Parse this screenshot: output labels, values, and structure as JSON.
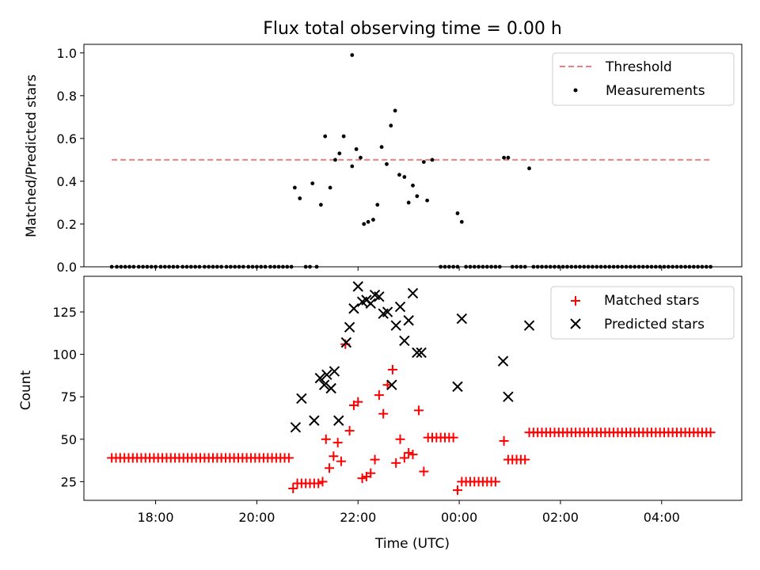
{
  "chart_data": [
    {
      "type": "scatter",
      "title": "Flux total observing time = 0.00 h",
      "ylabel": "Matched/Predicted stars",
      "ylim": [
        0,
        1.04
      ],
      "yticks": [
        "0.0",
        "0.2",
        "0.4",
        "0.6",
        "0.8",
        "1.0"
      ],
      "threshold": {
        "name": "Threshold",
        "value": 0.5,
        "x_start": "17:08",
        "x_end": "04:58",
        "color": "#f08080"
      },
      "legend_position": "upper right",
      "series": [
        {
          "name": "Measurements",
          "color": "#000000",
          "points": [
            [
              "20:45",
              0.37
            ],
            [
              "20:51",
              0.32
            ],
            [
              "21:06",
              0.39
            ],
            [
              "21:16",
              0.29
            ],
            [
              "21:21",
              0.61
            ],
            [
              "21:27",
              0.37
            ],
            [
              "21:33",
              0.5
            ],
            [
              "21:38",
              0.53
            ],
            [
              "21:43",
              0.61
            ],
            [
              "21:53",
              0.47
            ],
            [
              "21:58",
              0.55
            ],
            [
              "22:03",
              0.51
            ],
            [
              "22:07",
              0.2
            ],
            [
              "22:12",
              0.21
            ],
            [
              "22:18",
              0.22
            ],
            [
              "22:23",
              0.29
            ],
            [
              "22:28",
              0.56
            ],
            [
              "22:34",
              0.48
            ],
            [
              "22:39",
              0.66
            ],
            [
              "22:44",
              0.73
            ],
            [
              "22:49",
              0.43
            ],
            [
              "22:55",
              0.42
            ],
            [
              "23:00",
              0.3
            ],
            [
              "23:05",
              0.38
            ],
            [
              "23:10",
              0.33
            ],
            [
              "23:18",
              0.49
            ],
            [
              "23:22",
              0.31
            ],
            [
              "23:28",
              0.5
            ],
            [
              "23:58",
              0.25
            ],
            [
              "00:03",
              0.21
            ],
            [
              "00:53",
              0.51
            ],
            [
              "00:58",
              0.51
            ],
            [
              "01:23",
              0.46
            ],
            [
              "21:53",
              0.99
            ]
          ],
          "zero_points": [
            "17:08",
            "17:14",
            "17:19",
            "17:24",
            "17:29",
            "17:34",
            "17:40",
            "17:45",
            "17:50",
            "17:55",
            "18:00",
            "18:06",
            "18:11",
            "18:16",
            "18:21",
            "18:26",
            "18:32",
            "18:37",
            "18:42",
            "18:47",
            "18:52",
            "18:58",
            "19:03",
            "19:08",
            "19:13",
            "19:18",
            "19:24",
            "19:29",
            "19:34",
            "19:39",
            "19:44",
            "19:50",
            "19:55",
            "20:00",
            "20:05",
            "20:10",
            "20:16",
            "20:21",
            "20:26",
            "20:31",
            "20:36",
            "20:41",
            "20:58",
            "21:03",
            "21:11",
            "23:38",
            "23:43",
            "23:48",
            "23:53",
            "23:58",
            "00:08",
            "00:13",
            "00:18",
            "00:23",
            "00:28",
            "00:33",
            "00:38",
            "00:43",
            "00:48",
            "01:03",
            "01:08",
            "01:13",
            "01:18",
            "01:28",
            "01:33",
            "01:38",
            "01:43",
            "01:48",
            "01:53",
            "01:58",
            "02:03",
            "02:08",
            "02:13",
            "02:18",
            "02:23",
            "02:28",
            "02:33",
            "02:38",
            "02:43",
            "02:48",
            "02:53",
            "02:58",
            "03:03",
            "03:08",
            "03:13",
            "03:18",
            "03:23",
            "03:28",
            "03:33",
            "03:38",
            "03:43",
            "03:48",
            "03:53",
            "03:58",
            "04:03",
            "04:08",
            "04:13",
            "04:18",
            "04:23",
            "04:28",
            "04:33",
            "04:38",
            "04:43",
            "04:48",
            "04:53",
            "04:58"
          ]
        }
      ]
    },
    {
      "type": "scatter",
      "xlabel": "Time (UTC)",
      "ylabel": "Count",
      "ylim": [
        14,
        146
      ],
      "yticks": [
        "25",
        "50",
        "75",
        "100",
        "125"
      ],
      "xticks": [
        "18:00",
        "20:00",
        "22:00",
        "00:00",
        "02:00",
        "04:00"
      ],
      "xlim": [
        "16:35",
        "05:35"
      ],
      "legend_position": "upper right",
      "series": [
        {
          "name": "Matched stars",
          "color": "#ff0000",
          "marker": "+",
          "points": [
            [
              "17:08",
              39
            ],
            [
              "17:13",
              39
            ],
            [
              "17:18",
              39
            ],
            [
              "17:23",
              39
            ],
            [
              "17:28",
              39
            ],
            [
              "17:33",
              39
            ],
            [
              "17:38",
              39
            ],
            [
              "17:43",
              39
            ],
            [
              "17:48",
              39
            ],
            [
              "17:53",
              39
            ],
            [
              "17:58",
              39
            ],
            [
              "18:03",
              39
            ],
            [
              "18:08",
              39
            ],
            [
              "18:13",
              39
            ],
            [
              "18:18",
              39
            ],
            [
              "18:23",
              39
            ],
            [
              "18:28",
              39
            ],
            [
              "18:33",
              39
            ],
            [
              "18:38",
              39
            ],
            [
              "18:43",
              39
            ],
            [
              "18:48",
              39
            ],
            [
              "18:53",
              39
            ],
            [
              "18:58",
              39
            ],
            [
              "19:03",
              39
            ],
            [
              "19:08",
              39
            ],
            [
              "19:13",
              39
            ],
            [
              "19:18",
              39
            ],
            [
              "19:23",
              39
            ],
            [
              "19:28",
              39
            ],
            [
              "19:33",
              39
            ],
            [
              "19:38",
              39
            ],
            [
              "19:43",
              39
            ],
            [
              "19:48",
              39
            ],
            [
              "19:53",
              39
            ],
            [
              "19:58",
              39
            ],
            [
              "20:03",
              39
            ],
            [
              "20:08",
              39
            ],
            [
              "20:13",
              39
            ],
            [
              "20:18",
              39
            ],
            [
              "20:23",
              39
            ],
            [
              "20:28",
              39
            ],
            [
              "20:33",
              39
            ],
            [
              "20:38",
              39
            ],
            [
              "20:43",
              21
            ],
            [
              "20:48",
              24
            ],
            [
              "20:53",
              24
            ],
            [
              "20:58",
              24
            ],
            [
              "21:03",
              24
            ],
            [
              "21:08",
              24
            ],
            [
              "21:13",
              24
            ],
            [
              "21:18",
              25
            ],
            [
              "21:22",
              50
            ],
            [
              "21:26",
              33
            ],
            [
              "21:31",
              40
            ],
            [
              "21:36",
              48
            ],
            [
              "21:40",
              37
            ],
            [
              "21:45",
              106
            ],
            [
              "21:50",
              55
            ],
            [
              "21:55",
              70
            ],
            [
              "22:00",
              72
            ],
            [
              "22:05",
              27
            ],
            [
              "22:10",
              28
            ],
            [
              "22:15",
              30
            ],
            [
              "22:20",
              38
            ],
            [
              "22:25",
              76
            ],
            [
              "22:30",
              65
            ],
            [
              "22:35",
              82
            ],
            [
              "22:41",
              91
            ],
            [
              "22:45",
              36
            ],
            [
              "22:50",
              50
            ],
            [
              "22:55",
              39
            ],
            [
              "23:00",
              42
            ],
            [
              "23:05",
              41
            ],
            [
              "23:12",
              67
            ],
            [
              "23:18",
              31
            ],
            [
              "23:23",
              51
            ],
            [
              "23:28",
              51
            ],
            [
              "23:33",
              51
            ],
            [
              "23:38",
              51
            ],
            [
              "23:43",
              51
            ],
            [
              "23:48",
              51
            ],
            [
              "23:53",
              51
            ],
            [
              "23:58",
              20
            ],
            [
              "00:03",
              25
            ],
            [
              "00:08",
              25
            ],
            [
              "00:13",
              25
            ],
            [
              "00:18",
              25
            ],
            [
              "00:23",
              25
            ],
            [
              "00:28",
              25
            ],
            [
              "00:33",
              25
            ],
            [
              "00:38",
              25
            ],
            [
              "00:43",
              25
            ],
            [
              "00:53",
              49
            ],
            [
              "00:58",
              38
            ],
            [
              "01:03",
              38
            ],
            [
              "01:08",
              38
            ],
            [
              "01:13",
              38
            ],
            [
              "01:18",
              38
            ],
            [
              "01:23",
              54
            ],
            [
              "01:28",
              54
            ],
            [
              "01:33",
              54
            ],
            [
              "01:38",
              54
            ],
            [
              "01:43",
              54
            ],
            [
              "01:48",
              54
            ],
            [
              "01:53",
              54
            ],
            [
              "01:58",
              54
            ],
            [
              "02:03",
              54
            ],
            [
              "02:08",
              54
            ],
            [
              "02:13",
              54
            ],
            [
              "02:18",
              54
            ],
            [
              "02:23",
              54
            ],
            [
              "02:28",
              54
            ],
            [
              "02:33",
              54
            ],
            [
              "02:38",
              54
            ],
            [
              "02:43",
              54
            ],
            [
              "02:48",
              54
            ],
            [
              "02:53",
              54
            ],
            [
              "02:58",
              54
            ],
            [
              "03:03",
              54
            ],
            [
              "03:08",
              54
            ],
            [
              "03:13",
              54
            ],
            [
              "03:18",
              54
            ],
            [
              "03:23",
              54
            ],
            [
              "03:28",
              54
            ],
            [
              "03:33",
              54
            ],
            [
              "03:38",
              54
            ],
            [
              "03:43",
              54
            ],
            [
              "03:48",
              54
            ],
            [
              "03:53",
              54
            ],
            [
              "03:58",
              54
            ],
            [
              "04:03",
              54
            ],
            [
              "04:08",
              54
            ],
            [
              "04:13",
              54
            ],
            [
              "04:18",
              54
            ],
            [
              "04:23",
              54
            ],
            [
              "04:28",
              54
            ],
            [
              "04:33",
              54
            ],
            [
              "04:38",
              54
            ],
            [
              "04:43",
              54
            ],
            [
              "04:48",
              54
            ],
            [
              "04:53",
              54
            ],
            [
              "04:58",
              54
            ]
          ]
        },
        {
          "name": "Predicted stars",
          "color": "#000000",
          "marker": "x",
          "points": [
            [
              "20:46",
              57
            ],
            [
              "20:53",
              74
            ],
            [
              "21:08",
              61
            ],
            [
              "21:15",
              86
            ],
            [
              "21:20",
              82
            ],
            [
              "21:23",
              88
            ],
            [
              "21:28",
              80
            ],
            [
              "21:32",
              90
            ],
            [
              "21:37",
              61
            ],
            [
              "21:46",
              107
            ],
            [
              "21:50",
              116
            ],
            [
              "21:55",
              127
            ],
            [
              "22:00",
              140
            ],
            [
              "22:05",
              131
            ],
            [
              "22:10",
              132
            ],
            [
              "22:15",
              130
            ],
            [
              "22:20",
              135
            ],
            [
              "22:25",
              134
            ],
            [
              "22:30",
              124
            ],
            [
              "22:35",
              125
            ],
            [
              "22:40",
              82
            ],
            [
              "22:45",
              117
            ],
            [
              "22:50",
              128
            ],
            [
              "22:55",
              108
            ],
            [
              "23:00",
              120
            ],
            [
              "23:05",
              136
            ],
            [
              "23:10",
              101
            ],
            [
              "23:15",
              101
            ],
            [
              "23:58",
              81
            ],
            [
              "00:03",
              121
            ],
            [
              "00:52",
              96
            ],
            [
              "00:58",
              75
            ],
            [
              "01:23",
              117
            ]
          ]
        }
      ]
    }
  ]
}
